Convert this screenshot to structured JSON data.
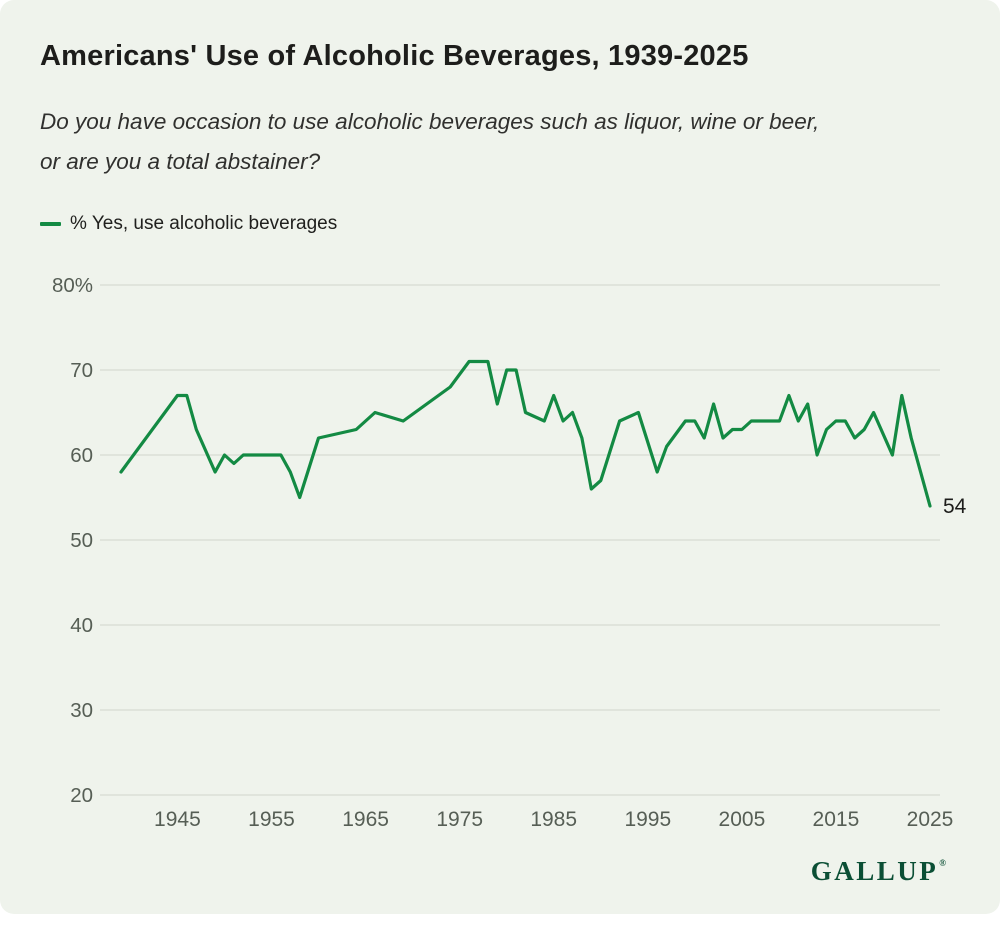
{
  "page": {
    "title": "Americans' Use of Alcoholic Beverages, 1939-2025",
    "subtitle_lines": [
      "Do you have occasion to use alcoholic beverages such as liquor, wine or beer,",
      "or are you a total abstainer?"
    ],
    "background_color": "#eff3ec",
    "brand": "GALLUP",
    "brand_registered": "®",
    "brand_color": "#0b4f35"
  },
  "legend": {
    "label": "% Yes, use alcoholic beverages"
  },
  "chart_data": {
    "type": "line",
    "title": "Americans' Use of Alcoholic Beverages, 1939-2025",
    "xlabel": "",
    "ylabel": "% Yes, use alcoholic beverages",
    "xlim": [
      1939,
      2025
    ],
    "ylim": [
      20,
      80
    ],
    "grid": true,
    "legend_position": "top-left",
    "line_color": "#138a43",
    "grid_color": "#d7dcd2",
    "axis_color": "#565e55",
    "end_label": "54",
    "x_ticks": [
      1945,
      1955,
      1965,
      1975,
      1985,
      1995,
      2005,
      2015,
      2025
    ],
    "y_ticks": [
      {
        "value": 80,
        "label": "80%"
      },
      {
        "value": 70,
        "label": "70"
      },
      {
        "value": 60,
        "label": "60"
      },
      {
        "value": 50,
        "label": "50"
      },
      {
        "value": 40,
        "label": "40"
      },
      {
        "value": 30,
        "label": "30"
      },
      {
        "value": 20,
        "label": "20"
      }
    ],
    "series": [
      {
        "name": "% Yes, use alcoholic beverages",
        "points": [
          [
            1939,
            58
          ],
          [
            1945,
            67
          ],
          [
            1946,
            67
          ],
          [
            1947,
            63
          ],
          [
            1949,
            58
          ],
          [
            1950,
            60
          ],
          [
            1951,
            59
          ],
          [
            1952,
            60
          ],
          [
            1956,
            60
          ],
          [
            1957,
            58
          ],
          [
            1958,
            55
          ],
          [
            1960,
            62
          ],
          [
            1964,
            63
          ],
          [
            1966,
            65
          ],
          [
            1969,
            64
          ],
          [
            1974,
            68
          ],
          [
            1976,
            71
          ],
          [
            1978,
            71
          ],
          [
            1979,
            66
          ],
          [
            1980,
            70
          ],
          [
            1981,
            70
          ],
          [
            1982,
            65
          ],
          [
            1984,
            64
          ],
          [
            1985,
            67
          ],
          [
            1986,
            64
          ],
          [
            1987,
            65
          ],
          [
            1988,
            62
          ],
          [
            1989,
            56
          ],
          [
            1990,
            57
          ],
          [
            1992,
            64
          ],
          [
            1994,
            65
          ],
          [
            1996,
            58
          ],
          [
            1997,
            61
          ],
          [
            1999,
            64
          ],
          [
            2000,
            64
          ],
          [
            2001,
            62
          ],
          [
            2002,
            66
          ],
          [
            2003,
            62
          ],
          [
            2004,
            63
          ],
          [
            2005,
            63
          ],
          [
            2006,
            64
          ],
          [
            2007,
            64
          ],
          [
            2008,
            64
          ],
          [
            2009,
            64
          ],
          [
            2010,
            67
          ],
          [
            2011,
            64
          ],
          [
            2012,
            66
          ],
          [
            2013,
            60
          ],
          [
            2014,
            63
          ],
          [
            2015,
            64
          ],
          [
            2016,
            64
          ],
          [
            2017,
            62
          ],
          [
            2018,
            63
          ],
          [
            2019,
            65
          ],
          [
            2021,
            60
          ],
          [
            2022,
            67
          ],
          [
            2023,
            62
          ],
          [
            2024,
            58
          ],
          [
            2025,
            54
          ]
        ]
      }
    ]
  }
}
